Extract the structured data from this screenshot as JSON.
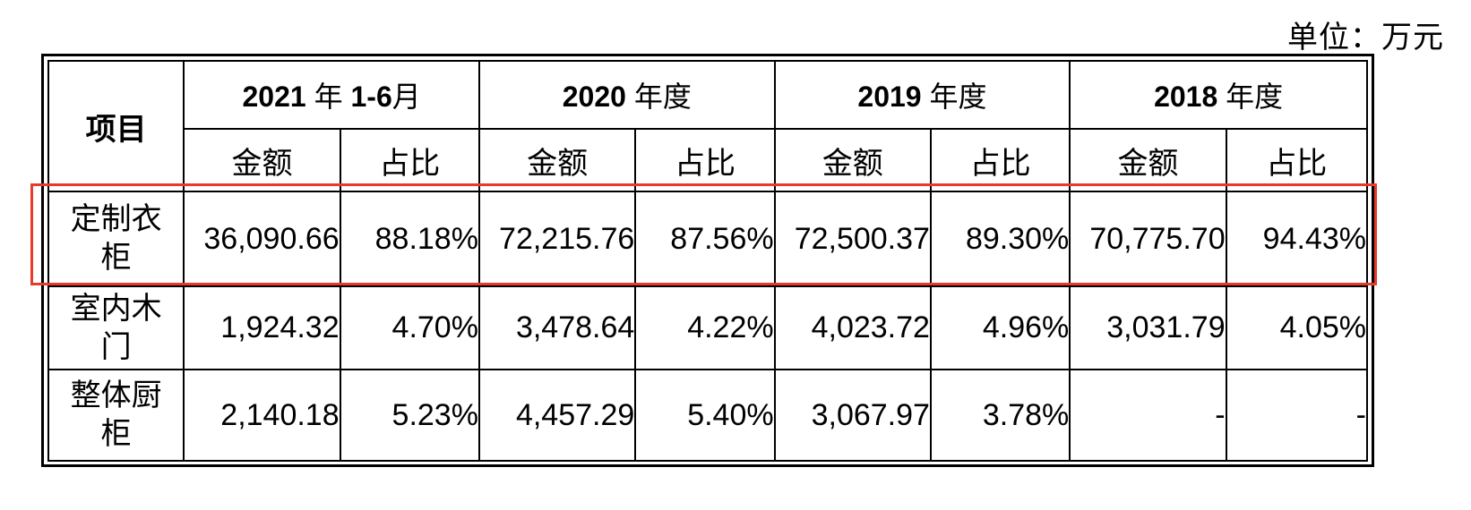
{
  "unit_label": "单位：万元",
  "table": {
    "item_header": "项目",
    "periods": [
      {
        "year": "2021",
        "suffix": "年",
        "extra": "1-6",
        "extra_suffix": "月"
      },
      {
        "year": "2020",
        "suffix": "年度",
        "extra": "",
        "extra_suffix": ""
      },
      {
        "year": "2019",
        "suffix": "年度",
        "extra": "",
        "extra_suffix": ""
      },
      {
        "year": "2018",
        "suffix": "年度",
        "extra": "",
        "extra_suffix": ""
      }
    ],
    "sub_headers": {
      "amount": "金额",
      "ratio": "占比"
    },
    "rows": [
      {
        "label": "定制衣柜",
        "cells": [
          "36,090.66",
          "88.18%",
          "72,215.76",
          "87.56%",
          "72,500.37",
          "89.30%",
          "70,775.70",
          "94.43%"
        ]
      },
      {
        "label": "室内木门",
        "cells": [
          "1,924.32",
          "4.70%",
          "3,478.64",
          "4.22%",
          "4,023.72",
          "4.96%",
          "3,031.79",
          "4.05%"
        ]
      },
      {
        "label": "整体厨柜",
        "cells": [
          "2,140.18",
          "5.23%",
          "4,457.29",
          "5.40%",
          "3,067.97",
          "3.78%",
          "-",
          "-"
        ]
      }
    ]
  },
  "highlight_color": "#e8392b"
}
